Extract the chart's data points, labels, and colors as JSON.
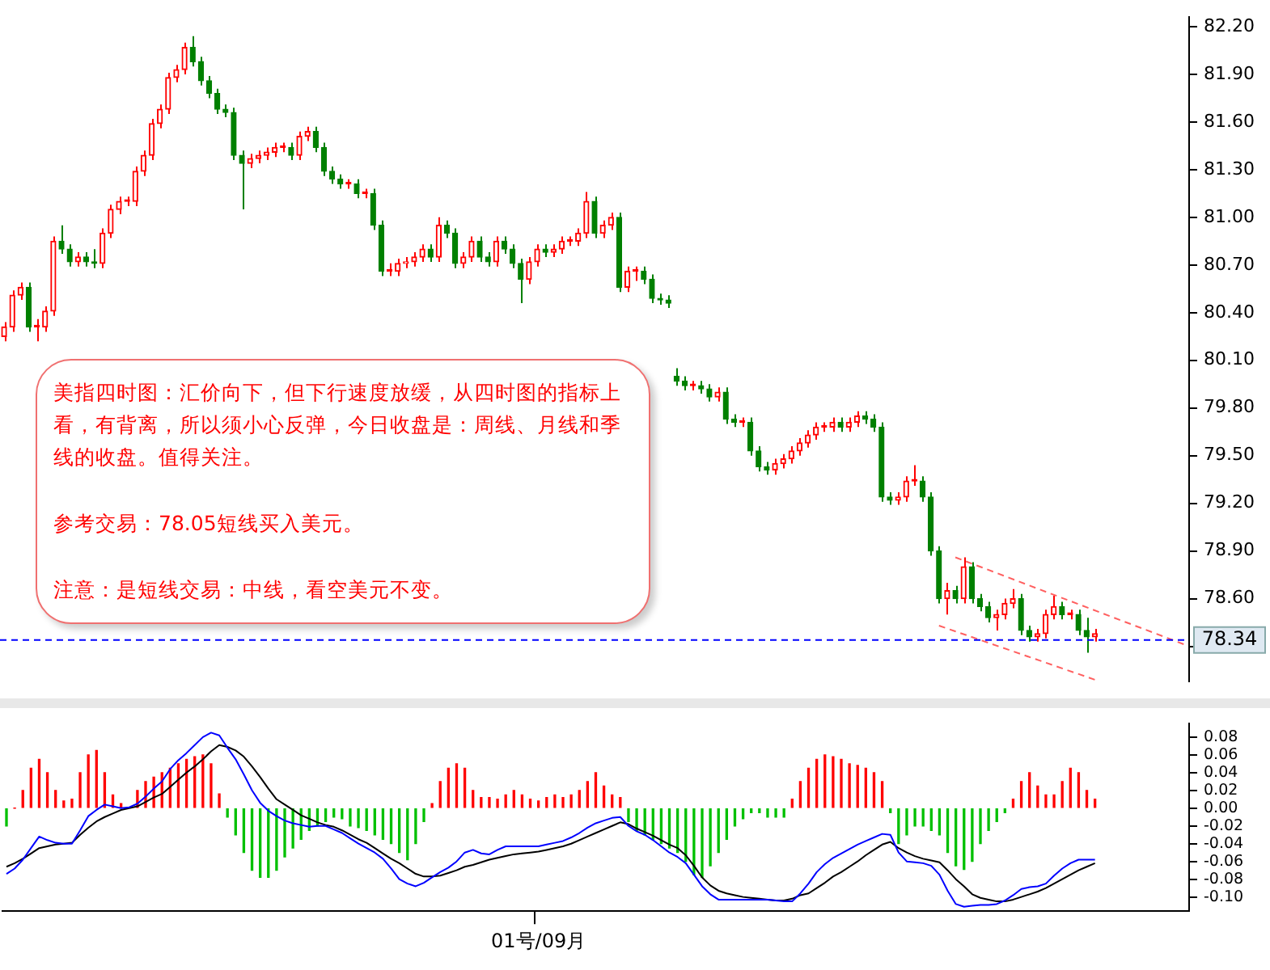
{
  "chart_data": [
    {
      "type": "candlestick",
      "categories": [
        null,
        null,
        null,
        null,
        null,
        null,
        null,
        null,
        null,
        null,
        null,
        null,
        null,
        null,
        null,
        null,
        null,
        null,
        null,
        null,
        null,
        null,
        null,
        null,
        null,
        null,
        null,
        null,
        null,
        null,
        null,
        null,
        null,
        null,
        null,
        null,
        null,
        null,
        null,
        null,
        null,
        null,
        null,
        null,
        null,
        null,
        null,
        null,
        null,
        null,
        null,
        null,
        null,
        null,
        null,
        null,
        null,
        null,
        null,
        null,
        null,
        null,
        null,
        null,
        null,
        null,
        null,
        null,
        null,
        null,
        null,
        null,
        null,
        null,
        null,
        null,
        null,
        null,
        null,
        null,
        null,
        null,
        null,
        null,
        null,
        null,
        null,
        null,
        null,
        null,
        null,
        null,
        null,
        null,
        null,
        null,
        null,
        null,
        null,
        null,
        null,
        null,
        null,
        null,
        null,
        null,
        null,
        null,
        null,
        null,
        null,
        null,
        null,
        null,
        null,
        null,
        null,
        null,
        null,
        null,
        null,
        null,
        null,
        null,
        null,
        null,
        null,
        null,
        null,
        null,
        null,
        null,
        null,
        null,
        null,
        null,
        null,
        null,
        null,
        null,
        null,
        null,
        null,
        null,
        null
      ],
      "ohlc": [
        [
          80.25,
          80.34,
          80.22,
          80.31
        ],
        [
          80.31,
          80.54,
          80.28,
          80.51
        ],
        [
          80.51,
          80.59,
          80.48,
          80.56
        ],
        [
          80.56,
          80.59,
          80.28,
          80.31
        ],
        [
          80.31,
          80.36,
          80.22,
          80.31
        ],
        [
          80.31,
          80.44,
          80.28,
          80.41
        ],
        [
          80.41,
          80.88,
          80.38,
          80.85
        ],
        [
          80.85,
          80.95,
          80.77,
          80.8
        ],
        [
          80.8,
          80.83,
          80.69,
          80.72
        ],
        [
          80.72,
          80.78,
          80.69,
          80.75
        ],
        [
          80.75,
          80.78,
          80.69,
          80.72
        ],
        [
          80.72,
          80.8,
          80.68,
          80.71
        ],
        [
          80.71,
          80.93,
          80.68,
          80.9
        ],
        [
          80.9,
          81.08,
          80.87,
          81.05
        ],
        [
          81.05,
          81.13,
          81.02,
          81.1
        ],
        [
          81.1,
          81.13,
          81.07,
          81.1
        ],
        [
          81.1,
          81.32,
          81.07,
          81.29
        ],
        [
          81.29,
          81.42,
          81.26,
          81.39
        ],
        [
          81.39,
          81.62,
          81.36,
          81.59
        ],
        [
          81.59,
          81.71,
          81.56,
          81.68
        ],
        [
          81.68,
          81.91,
          81.65,
          81.88
        ],
        [
          81.88,
          81.96,
          81.85,
          81.93
        ],
        [
          81.93,
          82.1,
          81.9,
          82.07
        ],
        [
          82.07,
          82.14,
          81.95,
          81.98
        ],
        [
          81.98,
          82.01,
          81.83,
          81.86
        ],
        [
          81.86,
          81.89,
          81.75,
          81.78
        ],
        [
          81.78,
          81.81,
          81.65,
          81.68
        ],
        [
          81.68,
          81.71,
          81.63,
          81.66
        ],
        [
          81.66,
          81.69,
          81.36,
          81.39
        ],
        [
          81.39,
          81.42,
          81.05,
          81.34
        ],
        [
          81.34,
          81.4,
          81.31,
          81.37
        ],
        [
          81.37,
          81.42,
          81.34,
          81.39
        ],
        [
          81.39,
          81.44,
          81.36,
          81.41
        ],
        [
          81.41,
          81.47,
          81.38,
          81.44
        ],
        [
          81.44,
          81.47,
          81.41,
          81.44
        ],
        [
          81.44,
          81.47,
          81.36,
          81.39
        ],
        [
          81.39,
          81.54,
          81.36,
          81.51
        ],
        [
          81.51,
          81.57,
          81.48,
          81.54
        ],
        [
          81.54,
          81.57,
          81.41,
          81.44
        ],
        [
          81.44,
          81.47,
          81.26,
          81.29
        ],
        [
          81.29,
          81.32,
          81.21,
          81.24
        ],
        [
          81.24,
          81.27,
          81.18,
          81.21
        ],
        [
          81.21,
          81.24,
          81.18,
          81.21
        ],
        [
          81.21,
          81.24,
          81.12,
          81.15
        ],
        [
          81.15,
          81.18,
          81.12,
          81.15
        ],
        [
          81.15,
          81.18,
          80.92,
          80.95
        ],
        [
          80.95,
          80.98,
          80.63,
          80.66
        ],
        [
          80.66,
          80.71,
          80.63,
          80.66
        ],
        [
          80.66,
          80.74,
          80.63,
          80.71
        ],
        [
          80.71,
          80.75,
          80.68,
          80.72
        ],
        [
          80.72,
          80.78,
          80.69,
          80.75
        ],
        [
          80.75,
          80.83,
          80.72,
          80.8
        ],
        [
          80.8,
          80.83,
          80.72,
          80.75
        ],
        [
          80.75,
          81.0,
          80.72,
          80.95
        ],
        [
          80.95,
          80.98,
          80.87,
          80.9
        ],
        [
          80.9,
          80.93,
          80.68,
          80.71
        ],
        [
          80.71,
          80.78,
          80.68,
          80.75
        ],
        [
          80.75,
          80.88,
          80.72,
          80.85
        ],
        [
          80.85,
          80.88,
          80.72,
          80.75
        ],
        [
          80.75,
          80.78,
          80.69,
          80.72
        ],
        [
          80.72,
          80.88,
          80.69,
          80.85
        ],
        [
          80.85,
          80.88,
          80.77,
          80.8
        ],
        [
          80.8,
          80.83,
          80.68,
          80.71
        ],
        [
          80.71,
          80.74,
          80.46,
          80.61
        ],
        [
          80.61,
          80.75,
          80.58,
          80.72
        ],
        [
          80.72,
          80.83,
          80.69,
          80.8
        ],
        [
          80.8,
          80.83,
          80.75,
          80.78
        ],
        [
          80.78,
          80.83,
          80.75,
          80.8
        ],
        [
          80.8,
          80.88,
          80.77,
          80.85
        ],
        [
          80.85,
          80.88,
          80.82,
          80.85
        ],
        [
          80.85,
          80.93,
          80.82,
          80.9
        ],
        [
          80.9,
          81.16,
          80.87,
          81.1
        ],
        [
          81.1,
          81.13,
          80.87,
          80.9
        ],
        [
          80.9,
          80.98,
          80.87,
          80.95
        ],
        [
          80.95,
          81.03,
          80.92,
          81.0
        ],
        [
          81.0,
          81.03,
          80.53,
          80.56
        ],
        [
          80.56,
          80.69,
          80.53,
          80.66
        ],
        [
          80.66,
          80.69,
          80.6,
          80.66
        ],
        [
          80.66,
          80.69,
          80.58,
          80.61
        ],
        [
          80.61,
          80.64,
          80.46,
          80.49
        ],
        [
          80.49,
          80.52,
          80.45,
          80.48
        ],
        [
          80.48,
          80.51,
          80.43,
          80.46
        ],
        [
          80.0,
          80.05,
          79.94,
          79.97
        ],
        [
          79.97,
          80.0,
          79.91,
          79.94
        ],
        [
          79.94,
          79.97,
          79.91,
          79.94
        ],
        [
          79.94,
          79.97,
          79.89,
          79.92
        ],
        [
          79.92,
          79.95,
          79.84,
          79.87
        ],
        [
          79.87,
          79.93,
          79.84,
          79.9
        ],
        [
          79.9,
          79.93,
          79.7,
          79.73
        ],
        [
          79.73,
          79.76,
          79.68,
          79.71
        ],
        [
          79.71,
          79.74,
          79.68,
          79.71
        ],
        [
          79.71,
          79.74,
          79.5,
          79.53
        ],
        [
          79.53,
          79.56,
          79.4,
          79.43
        ],
        [
          79.43,
          79.46,
          79.38,
          79.41
        ],
        [
          79.41,
          79.48,
          79.38,
          79.45
        ],
        [
          79.45,
          79.51,
          79.42,
          79.48
        ],
        [
          79.48,
          79.56,
          79.45,
          79.53
        ],
        [
          79.53,
          79.61,
          79.5,
          79.58
        ],
        [
          79.58,
          79.66,
          79.55,
          79.63
        ],
        [
          79.63,
          79.71,
          79.6,
          79.68
        ],
        [
          79.68,
          79.71,
          79.65,
          79.68
        ],
        [
          79.68,
          79.74,
          79.65,
          79.71
        ],
        [
          79.71,
          79.74,
          79.65,
          79.68
        ],
        [
          79.68,
          79.74,
          79.65,
          79.71
        ],
        [
          79.71,
          79.78,
          79.68,
          79.75
        ],
        [
          79.75,
          79.78,
          79.7,
          79.73
        ],
        [
          79.73,
          79.76,
          79.65,
          79.68
        ],
        [
          79.68,
          79.71,
          79.21,
          79.24
        ],
        [
          79.24,
          79.27,
          79.19,
          79.22
        ],
        [
          79.22,
          79.27,
          79.19,
          79.24
        ],
        [
          79.24,
          79.37,
          79.21,
          79.34
        ],
        [
          79.34,
          79.44,
          79.31,
          79.34
        ],
        [
          79.34,
          79.37,
          79.21,
          79.24
        ],
        [
          79.24,
          79.27,
          78.87,
          78.9
        ],
        [
          78.9,
          78.93,
          78.57,
          78.6
        ],
        [
          78.6,
          78.7,
          78.5,
          78.65
        ],
        [
          78.65,
          78.68,
          78.57,
          78.6
        ],
        [
          78.6,
          78.86,
          78.57,
          78.8
        ],
        [
          78.8,
          78.83,
          78.57,
          78.6
        ],
        [
          78.6,
          78.63,
          78.52,
          78.55
        ],
        [
          78.55,
          78.58,
          78.45,
          78.48
        ],
        [
          78.48,
          78.53,
          78.4,
          78.5
        ],
        [
          78.5,
          78.6,
          78.47,
          78.57
        ],
        [
          78.57,
          78.66,
          78.54,
          78.6
        ],
        [
          78.6,
          78.63,
          78.37,
          78.4
        ],
        [
          78.4,
          78.43,
          78.33,
          78.36
        ],
        [
          78.36,
          78.41,
          78.33,
          78.38
        ],
        [
          78.38,
          78.53,
          78.35,
          78.5
        ],
        [
          78.5,
          78.62,
          78.47,
          78.55
        ],
        [
          78.55,
          78.58,
          78.47,
          78.5
        ],
        [
          78.5,
          78.53,
          78.47,
          78.5
        ],
        [
          78.5,
          78.53,
          78.37,
          78.4
        ],
        [
          78.4,
          78.48,
          78.26,
          78.36
        ],
        [
          78.36,
          78.41,
          78.33,
          78.38
        ],
        null,
        null,
        null,
        null,
        null,
        null,
        null,
        null,
        null,
        null,
        null
      ],
      "colors": [
        "#ff0000",
        "#ff0000",
        "#ff0000",
        "#008000",
        "#ff0000",
        "#ff0000",
        "#ff0000",
        "#008000",
        "#008000",
        "#ff0000",
        "#008000",
        "#008000",
        "#ff0000",
        "#ff0000",
        "#ff0000",
        "#ff0000",
        "#ff0000",
        "#ff0000",
        "#ff0000",
        "#ff0000",
        "#ff0000",
        "#ff0000",
        "#ff0000",
        "#008000",
        "#008000",
        "#008000",
        "#008000",
        "#008000",
        "#008000",
        "#008000",
        "#ff0000",
        "#ff0000",
        "#ff0000",
        "#ff0000",
        "#ff0000",
        "#008000",
        "#ff0000",
        "#ff0000",
        "#008000",
        "#008000",
        "#008000",
        "#008000",
        "#ff0000",
        "#008000",
        "#ff0000",
        "#008000",
        "#008000",
        "#ff0000",
        "#ff0000",
        "#ff0000",
        "#ff0000",
        "#ff0000",
        "#008000",
        "#ff0000",
        "#008000",
        "#008000",
        "#ff0000",
        "#ff0000",
        "#008000",
        "#008000",
        "#ff0000",
        "#008000",
        "#008000",
        "#008000",
        "#ff0000",
        "#ff0000",
        "#008000",
        "#ff0000",
        "#ff0000",
        "#ff0000",
        "#ff0000",
        "#ff0000",
        "#008000",
        "#ff0000",
        "#ff0000",
        "#008000",
        "#ff0000",
        "#ff0000",
        "#008000",
        "#008000",
        "#008000",
        "#008000",
        "#008000",
        "#008000",
        "#ff0000",
        "#008000",
        "#008000",
        "#ff0000",
        "#008000",
        "#008000",
        "#ff0000",
        "#008000",
        "#008000",
        "#008000",
        "#ff0000",
        "#ff0000",
        "#ff0000",
        "#ff0000",
        "#ff0000",
        "#ff0000",
        "#ff0000",
        "#ff0000",
        "#008000",
        "#ff0000",
        "#ff0000",
        "#008000",
        "#008000",
        "#008000",
        "#008000",
        "#ff0000",
        "#ff0000",
        "#ff0000",
        "#008000",
        "#008000",
        "#008000",
        "#ff0000",
        "#008000",
        "#ff0000",
        "#008000",
        "#008000",
        "#008000",
        "#ff0000",
        "#ff0000",
        "#ff0000",
        "#008000",
        "#008000",
        "#ff0000",
        "#ff0000",
        "#ff0000",
        "#008000",
        "#ff0000",
        "#008000",
        "#008000",
        "#ff0000",
        null,
        null,
        null,
        null,
        null,
        null,
        null,
        null,
        null,
        null,
        null
      ],
      "series": [
        {
          "type": "line",
          "color": "#ff6060",
          "line_style": "dashed",
          "values": [
            null,
            null,
            null,
            null,
            null,
            null,
            null,
            null,
            null,
            null,
            null,
            null,
            null,
            null,
            null,
            null,
            null,
            null,
            null,
            null,
            null,
            null,
            null,
            null,
            null,
            null,
            null,
            null,
            null,
            null,
            null,
            null,
            null,
            null,
            null,
            null,
            null,
            null,
            null,
            null,
            null,
            null,
            null,
            null,
            null,
            null,
            null,
            null,
            null,
            null,
            null,
            null,
            null,
            null,
            null,
            null,
            null,
            null,
            null,
            null,
            null,
            null,
            null,
            null,
            null,
            null,
            null,
            null,
            null,
            null,
            null,
            null,
            null,
            null,
            null,
            null,
            null,
            null,
            null,
            null,
            null,
            null,
            null,
            null,
            null,
            null,
            null,
            null,
            null,
            null,
            null,
            null,
            null,
            null,
            null,
            null,
            null,
            null,
            null,
            null,
            null,
            null,
            null,
            null,
            null,
            null,
            null,
            null,
            null,
            null,
            null,
            null,
            null,
            null,
            null,
            null,
            78.86,
            null,
            null,
            null,
            null,
            null,
            null,
            null,
            null,
            null,
            null,
            null,
            null,
            null,
            null,
            null,
            null,
            null,
            null,
            null,
            null,
            null,
            null,
            null,
            null,
            null,
            null,
            null,
            78.31
          ]
        },
        {
          "type": "line",
          "color": "#ff6060",
          "line_style": "dashed",
          "values": [
            null,
            null,
            null,
            null,
            null,
            null,
            null,
            null,
            null,
            null,
            null,
            null,
            null,
            null,
            null,
            null,
            null,
            null,
            null,
            null,
            null,
            null,
            null,
            null,
            null,
            null,
            null,
            null,
            null,
            null,
            null,
            null,
            null,
            null,
            null,
            null,
            null,
            null,
            null,
            null,
            null,
            null,
            null,
            null,
            null,
            null,
            null,
            null,
            null,
            null,
            null,
            null,
            null,
            null,
            null,
            null,
            null,
            null,
            null,
            null,
            null,
            null,
            null,
            null,
            null,
            null,
            null,
            null,
            null,
            null,
            null,
            null,
            null,
            null,
            null,
            null,
            null,
            null,
            null,
            null,
            null,
            null,
            null,
            null,
            null,
            null,
            null,
            null,
            null,
            null,
            null,
            null,
            null,
            null,
            null,
            null,
            null,
            null,
            null,
            null,
            null,
            null,
            null,
            null,
            null,
            null,
            null,
            null,
            null,
            null,
            null,
            null,
            null,
            null,
            78.43,
            null,
            null,
            null,
            null,
            null,
            null,
            null,
            null,
            null,
            null,
            null,
            null,
            null,
            null,
            null,
            null,
            null,
            null,
            78.09,
            null,
            null,
            null,
            null,
            null,
            null,
            null,
            null,
            null,
            null,
            null
          ]
        }
      ],
      "ylim": [
        78.08,
        82.26
      ],
      "yticks": [
        {
          "value": 82.2,
          "label": "82.20"
        },
        {
          "value": 81.9,
          "label": "81.90"
        },
        {
          "value": 81.6,
          "label": "81.60"
        },
        {
          "value": 81.3,
          "label": "81.30"
        },
        {
          "value": 81.0,
          "label": "81.00"
        },
        {
          "value": 80.7,
          "label": "80.70"
        },
        {
          "value": 80.4,
          "label": "80.40"
        },
        {
          "value": 80.1,
          "label": "80.10"
        },
        {
          "value": 79.8,
          "label": "79.80"
        },
        {
          "value": 79.5,
          "label": "79.50"
        },
        {
          "value": 79.2,
          "label": "79.20"
        },
        {
          "value": 78.9,
          "label": "78.90"
        },
        {
          "value": 78.6,
          "label": "78.60"
        },
        {
          "value": 78.3,
          "label": null
        }
      ],
      "tick_labels": "y",
      "grid": false,
      "legend": false,
      "ref_lines": [
        {
          "axis": "y",
          "value": 78.34,
          "label": "78.34",
          "color": "#0000ff",
          "line_style": "dashed"
        }
      ],
      "annotations": [
        "美指四时图：汇价向下，但下行速度放缓，从四时图的指标上看，有背离，所以须小心反弹，今日收盘是：周线、月线和季线的收盘。值得关注。",
        "参考交易：78.05短线买入美元。",
        "注意：是短线交易：中线，看空美元不变。"
      ]
    },
    {
      "type": "bar",
      "categories": [
        null,
        null,
        null,
        null,
        null,
        null,
        null,
        null,
        null,
        null,
        null,
        null,
        null,
        null,
        null,
        null,
        null,
        null,
        null,
        null,
        null,
        null,
        null,
        null,
        null,
        null,
        null,
        null,
        null,
        null,
        null,
        null,
        null,
        null,
        null,
        null,
        null,
        null,
        null,
        null,
        null,
        null,
        null,
        null,
        null,
        null,
        null,
        null,
        null,
        null,
        null,
        null,
        null,
        null,
        null,
        null,
        null,
        null,
        null,
        null,
        null,
        null,
        null,
        null,
        null,
        "01号/09月",
        null,
        null,
        null,
        null,
        null,
        null,
        null,
        null,
        null,
        null,
        null,
        null,
        null,
        null,
        null,
        null,
        null,
        null,
        null,
        null,
        null,
        null,
        null,
        null,
        null,
        null,
        null,
        null,
        null,
        null,
        null,
        null,
        null,
        null,
        null,
        null,
        null,
        null,
        null,
        null,
        null,
        null,
        null,
        null,
        null,
        null,
        null,
        null,
        null,
        null,
        null,
        null,
        null,
        null,
        null,
        null,
        null,
        null,
        null,
        null,
        null,
        null,
        null,
        null,
        null,
        null,
        null,
        null,
        null,
        null,
        null,
        null,
        null,
        null,
        null,
        null,
        null,
        null,
        null
      ],
      "series": [
        {
          "type": "bar",
          "values": [
            -0.02,
            0,
            0.02,
            0.045,
            0.055,
            0.04,
            0.02,
            0.008,
            0.01,
            0.04,
            0.06,
            0.065,
            0.04,
            0.015,
            0.005,
            null,
            0.02,
            0.03,
            0.035,
            0.04,
            0.045,
            0.05,
            0.055,
            0.058,
            0.06,
            0.05,
            0.016,
            -0.01,
            -0.03,
            -0.05,
            -0.07,
            -0.078,
            -0.078,
            -0.07,
            -0.055,
            -0.045,
            -0.035,
            -0.025,
            -0.02,
            -0.015,
            -0.01,
            -0.012,
            -0.02,
            -0.022,
            -0.025,
            -0.03,
            -0.035,
            -0.04,
            -0.05,
            -0.058,
            -0.04,
            -0.015,
            0.005,
            0.03,
            0.045,
            0.05,
            0.045,
            0.02,
            0.012,
            0.012,
            0.01,
            0.015,
            0.02,
            0.015,
            0.01,
            0.008,
            0.012,
            0.015,
            0.012,
            0.015,
            0.02,
            0.03,
            0.04,
            0.025,
            0.015,
            0.012,
            -0.015,
            -0.025,
            -0.03,
            -0.035,
            -0.04,
            -0.045,
            -0.05,
            -0.06,
            -0.075,
            -0.078,
            -0.065,
            -0.05,
            -0.035,
            -0.02,
            -0.012,
            -0.005,
            -0.005,
            -0.01,
            -0.01,
            -0.01,
            0.01,
            0.03,
            0.045,
            0.055,
            0.06,
            0.058,
            0.055,
            0.05,
            0.048,
            0.045,
            0.04,
            0.03,
            -0.005,
            -0.04,
            -0.03,
            -0.02,
            -0.02,
            -0.025,
            -0.03,
            -0.05,
            -0.065,
            -0.069,
            -0.06,
            -0.04,
            -0.025,
            -0.015,
            -0.005,
            0.01,
            0.03,
            0.04,
            0.025,
            0.015,
            0.015,
            0.03,
            0.045,
            0.04,
            0.02,
            0.01,
            null,
            null,
            null,
            null,
            null,
            null,
            null,
            null,
            null,
            null,
            null
          ],
          "colors": [
            "#00c000",
            "#ff0000",
            "#ff0000",
            "#ff0000",
            "#ff0000",
            "#ff0000",
            "#ff0000",
            "#ff0000",
            "#ff0000",
            "#ff0000",
            "#ff0000",
            "#ff0000",
            "#ff0000",
            "#ff0000",
            "#ff0000",
            "#ff0000",
            "#ff0000",
            "#ff0000",
            "#ff0000",
            "#ff0000",
            "#ff0000",
            "#ff0000",
            "#ff0000",
            "#ff0000",
            "#ff0000",
            "#ff0000",
            "#ff0000",
            "#00c000",
            "#00c000",
            "#00c000",
            "#00c000",
            "#00c000",
            "#00c000",
            "#00c000",
            "#00c000",
            "#00c000",
            "#00c000",
            "#00c000",
            "#00c000",
            "#00c000",
            "#00c000",
            "#00c000",
            "#00c000",
            "#00c000",
            "#00c000",
            "#00c000",
            "#00c000",
            "#00c000",
            "#00c000",
            "#00c000",
            "#00c000",
            "#00c000",
            "#ff0000",
            "#ff0000",
            "#ff0000",
            "#ff0000",
            "#ff0000",
            "#ff0000",
            "#ff0000",
            "#ff0000",
            "#ff0000",
            "#ff0000",
            "#ff0000",
            "#ff0000",
            "#ff0000",
            "#ff0000",
            "#ff0000",
            "#ff0000",
            "#ff0000",
            "#ff0000",
            "#ff0000",
            "#ff0000",
            "#ff0000",
            "#ff0000",
            "#ff0000",
            "#ff0000",
            "#00c000",
            "#00c000",
            "#00c000",
            "#00c000",
            "#00c000",
            "#00c000",
            "#00c000",
            "#00c000",
            "#00c000",
            "#00c000",
            "#00c000",
            "#00c000",
            "#00c000",
            "#00c000",
            "#00c000",
            "#00c000",
            "#00c000",
            "#00c000",
            "#00c000",
            "#00c000",
            "#ff0000",
            "#ff0000",
            "#ff0000",
            "#ff0000",
            "#ff0000",
            "#ff0000",
            "#ff0000",
            "#ff0000",
            "#ff0000",
            "#ff0000",
            "#ff0000",
            "#ff0000",
            "#00c000",
            "#00c000",
            "#00c000",
            "#00c000",
            "#00c000",
            "#00c000",
            "#00c000",
            "#00c000",
            "#00c000",
            "#00c000",
            "#00c000",
            "#00c000",
            "#00c000",
            "#00c000",
            "#00c000",
            "#ff0000",
            "#ff0000",
            "#ff0000",
            "#ff0000",
            "#ff0000",
            "#ff0000",
            "#ff0000",
            "#ff0000",
            "#ff0000",
            "#ff0000",
            "#ff0000",
            null,
            null,
            null,
            null,
            null,
            null,
            null,
            null,
            null,
            null,
            null
          ]
        },
        {
          "type": "line",
          "color": "#0000ff",
          "values": [
            -0.074,
            -0.068,
            -0.058,
            -0.045,
            -0.032,
            -0.036,
            -0.039,
            -0.04,
            -0.04,
            -0.025,
            -0.009,
            -0.002,
            0.004,
            0.002,
            0,
            0.001,
            0.005,
            0.013,
            0.022,
            0.03,
            0.044,
            0.054,
            0.062,
            0.071,
            0.08,
            0.085,
            0.082,
            0.068,
            0.055,
            0.038,
            0.02,
            0.006,
            -0.003,
            -0.009,
            -0.014,
            -0.017,
            -0.019,
            -0.021,
            -0.02,
            -0.02,
            -0.024,
            -0.028,
            -0.034,
            -0.04,
            -0.045,
            -0.05,
            -0.057,
            -0.068,
            -0.08,
            -0.085,
            -0.088,
            -0.084,
            -0.078,
            -0.072,
            -0.067,
            -0.06,
            -0.05,
            -0.047,
            -0.051,
            -0.052,
            -0.047,
            -0.043,
            -0.043,
            -0.043,
            -0.043,
            -0.043,
            -0.041,
            -0.039,
            -0.037,
            -0.033,
            -0.028,
            -0.022,
            -0.017,
            -0.014,
            -0.011,
            -0.01,
            -0.02,
            -0.026,
            -0.03,
            -0.036,
            -0.043,
            -0.05,
            -0.055,
            -0.062,
            -0.075,
            -0.088,
            -0.097,
            -0.103,
            -0.103,
            -0.103,
            -0.103,
            -0.103,
            -0.103,
            -0.103,
            -0.104,
            -0.105,
            -0.105,
            -0.096,
            -0.085,
            -0.072,
            -0.063,
            -0.056,
            -0.051,
            -0.046,
            -0.041,
            -0.037,
            -0.033,
            -0.029,
            -0.03,
            -0.05,
            -0.06,
            -0.061,
            -0.062,
            -0.065,
            -0.075,
            -0.093,
            -0.108,
            -0.111,
            -0.11,
            -0.109,
            -0.109,
            -0.108,
            -0.104,
            -0.098,
            -0.091,
            -0.089,
            -0.088,
            -0.085,
            -0.076,
            -0.068,
            -0.062,
            -0.058,
            -0.058,
            -0.058,
            null,
            null,
            null,
            null,
            null,
            null,
            null,
            null,
            null,
            null,
            null
          ]
        },
        {
          "type": "line",
          "color": "#000000",
          "values": [
            -0.066,
            -0.062,
            -0.057,
            -0.051,
            -0.045,
            -0.043,
            -0.041,
            -0.04,
            -0.039,
            -0.03,
            -0.022,
            -0.015,
            -0.01,
            -0.006,
            -0.002,
            0,
            0.002,
            0.007,
            0.012,
            0.016,
            0.024,
            0.032,
            0.04,
            0.047,
            0.055,
            0.064,
            0.071,
            0.069,
            0.065,
            0.058,
            0.047,
            0.035,
            0.022,
            0.01,
            0.004,
            -0.002,
            -0.008,
            -0.012,
            -0.016,
            -0.019,
            -0.021,
            -0.025,
            -0.03,
            -0.035,
            -0.039,
            -0.045,
            -0.051,
            -0.057,
            -0.062,
            -0.068,
            -0.074,
            -0.077,
            -0.077,
            -0.076,
            -0.073,
            -0.07,
            -0.066,
            -0.064,
            -0.061,
            -0.058,
            -0.056,
            -0.054,
            -0.052,
            -0.051,
            -0.05,
            -0.049,
            -0.047,
            -0.045,
            -0.043,
            -0.04,
            -0.036,
            -0.032,
            -0.028,
            -0.024,
            -0.02,
            -0.016,
            -0.018,
            -0.023,
            -0.027,
            -0.031,
            -0.036,
            -0.041,
            -0.045,
            -0.053,
            -0.065,
            -0.078,
            -0.087,
            -0.093,
            -0.096,
            -0.098,
            -0.1,
            -0.101,
            -0.102,
            -0.103,
            -0.104,
            -0.104,
            -0.102,
            -0.098,
            -0.096,
            -0.09,
            -0.084,
            -0.077,
            -0.072,
            -0.066,
            -0.06,
            -0.053,
            -0.047,
            -0.041,
            -0.038,
            -0.045,
            -0.05,
            -0.054,
            -0.057,
            -0.059,
            -0.061,
            -0.07,
            -0.08,
            -0.088,
            -0.097,
            -0.101,
            -0.103,
            -0.105,
            -0.105,
            -0.103,
            -0.1,
            -0.097,
            -0.094,
            -0.09,
            -0.085,
            -0.08,
            -0.075,
            -0.07,
            -0.066,
            -0.062,
            null,
            null,
            null,
            null,
            null,
            null,
            null,
            null,
            null,
            null,
            null
          ]
        }
      ],
      "ylim": [
        -0.116,
        0.095
      ],
      "yticks": [
        {
          "value": 0.08,
          "label": "0.08"
        },
        {
          "value": 0.06,
          "label": "0.06"
        },
        {
          "value": 0.04,
          "label": "0.04"
        },
        {
          "value": 0.02,
          "label": "0.02"
        },
        {
          "value": 0,
          "label": "0.00"
        },
        {
          "value": -0.02,
          "label": "-0.02"
        },
        {
          "value": -0.04,
          "label": "-0.04"
        },
        {
          "value": -0.06,
          "label": "-0.06"
        },
        {
          "value": -0.08,
          "label": "-0.08"
        },
        {
          "value": -0.1,
          "label": "-0.10"
        }
      ],
      "grid": false,
      "legend": false,
      "marker": "none"
    }
  ]
}
